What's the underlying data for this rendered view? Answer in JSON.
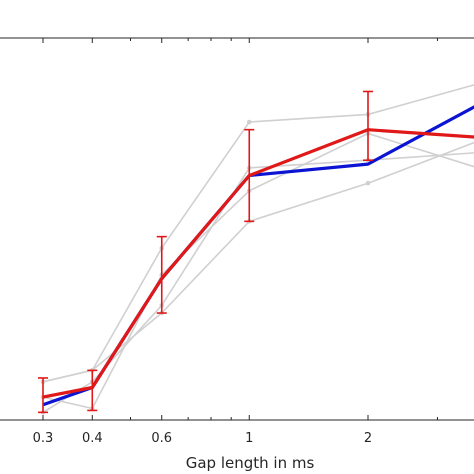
{
  "chart_data": {
    "type": "line",
    "xlabel": "Gap length in ms",
    "ylabel": "",
    "x_scale": "log",
    "x_ticks": [
      0.3,
      0.4,
      0.6,
      1,
      2
    ],
    "x_tick_labels": [
      "0.3",
      "0.4",
      "0.6",
      "1",
      "2"
    ],
    "xlim": [
      0.25,
      3.8
    ],
    "ylim": [
      0,
      1
    ],
    "grid": false,
    "individual_series": [
      {
        "x": [
          0.3,
          0.4,
          0.6,
          1,
          2,
          3.8
        ],
        "y": [
          0.1,
          0.13,
          0.45,
          0.78,
          0.8,
          0.88
        ]
      },
      {
        "x": [
          0.3,
          0.4,
          0.6,
          1,
          2,
          3.8
        ],
        "y": [
          0.06,
          0.03,
          0.38,
          0.6,
          0.75,
          0.66
        ]
      },
      {
        "x": [
          0.3,
          0.4,
          0.6,
          1,
          2,
          3.8
        ],
        "y": [
          0.1,
          0.13,
          0.28,
          0.52,
          0.62,
          0.73
        ]
      },
      {
        "x": [
          0.3,
          0.4,
          0.6,
          1,
          2,
          3.8
        ],
        "y": [
          0.02,
          0.1,
          0.3,
          0.66,
          0.68,
          0.7
        ]
      }
    ],
    "series": [
      {
        "x": [
          0.3,
          0.4,
          0.6,
          1,
          2,
          3.8
        ],
        "y": [
          0.04,
          0.085,
          0.37,
          0.64,
          0.67,
          0.825
        ],
        "color": "#0a14d2"
      },
      {
        "x": [
          0.3,
          0.4,
          0.6,
          1,
          2,
          3.8
        ],
        "y": [
          0.06,
          0.085,
          0.37,
          0.64,
          0.76,
          0.74
        ],
        "color": "#e01818",
        "error_low": [
          0.02,
          0.025,
          0.28,
          0.52,
          0.68
        ],
        "error_high": [
          0.11,
          0.13,
          0.48,
          0.76,
          0.86
        ]
      }
    ],
    "colors": {
      "individual": "#d0d0d0",
      "axis": "#262626"
    }
  }
}
